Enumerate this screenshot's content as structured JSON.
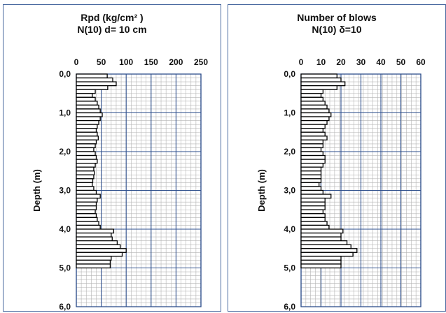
{
  "chart_data": [
    {
      "type": "bar",
      "orientation": "horizontal-step",
      "title": "Rpd  (kg/cm² )",
      "subtitle": "N(10)  d= 10  cm",
      "xlabel": "",
      "ylabel": "Depth (m)",
      "xlim": [
        0,
        250
      ],
      "ylim": [
        0,
        6
      ],
      "x_ticks": [
        "0",
        "50",
        "100",
        "150",
        "200",
        "250"
      ],
      "y_ticks": [
        "0,0",
        "1,0",
        "2,0",
        "3,0",
        "4,0",
        "5,0",
        "6,0"
      ],
      "grid": true,
      "depth_step": 0.1,
      "depth_start": 0,
      "values": [
        62,
        73,
        80,
        63,
        38,
        32,
        38,
        42,
        45,
        48,
        52,
        48,
        45,
        42,
        40,
        42,
        44,
        40,
        38,
        35,
        38,
        40,
        42,
        38,
        35,
        36,
        35,
        33,
        32,
        35,
        40,
        48,
        42,
        40,
        40,
        38,
        40,
        42,
        45,
        48,
        75,
        70,
        72,
        82,
        88,
        100,
        92,
        70,
        68,
        68
      ]
    },
    {
      "type": "bar",
      "orientation": "horizontal-step",
      "title": "Number of blows",
      "subtitle": "N(10)  δ=10",
      "xlabel": "",
      "ylabel": "Depth (m)",
      "xlim": [
        0,
        60
      ],
      "ylim": [
        0,
        6
      ],
      "x_ticks": [
        "0",
        "10",
        "20",
        "30",
        "40",
        "50",
        "60"
      ],
      "y_ticks": [
        "0,0",
        "1,0",
        "2,0",
        "3,0",
        "4,0",
        "5,0",
        "6,0"
      ],
      "grid": true,
      "depth_step": 0.1,
      "depth_start": 0,
      "values": [
        18,
        20,
        22,
        18,
        11,
        10,
        11,
        12,
        13,
        14,
        15,
        14,
        13,
        12,
        11,
        12,
        13,
        11,
        11,
        10,
        11,
        12,
        12,
        11,
        10,
        10,
        10,
        10,
        9,
        10,
        11,
        15,
        12,
        12,
        12,
        11,
        12,
        12,
        13,
        14,
        21,
        20,
        20,
        23,
        25,
        28,
        26,
        20,
        20,
        20
      ]
    }
  ],
  "colors": {
    "grid": "#b4b4b4",
    "major": "#2e4f8c",
    "bars": "#000000",
    "frame": "#4a6aa0"
  }
}
